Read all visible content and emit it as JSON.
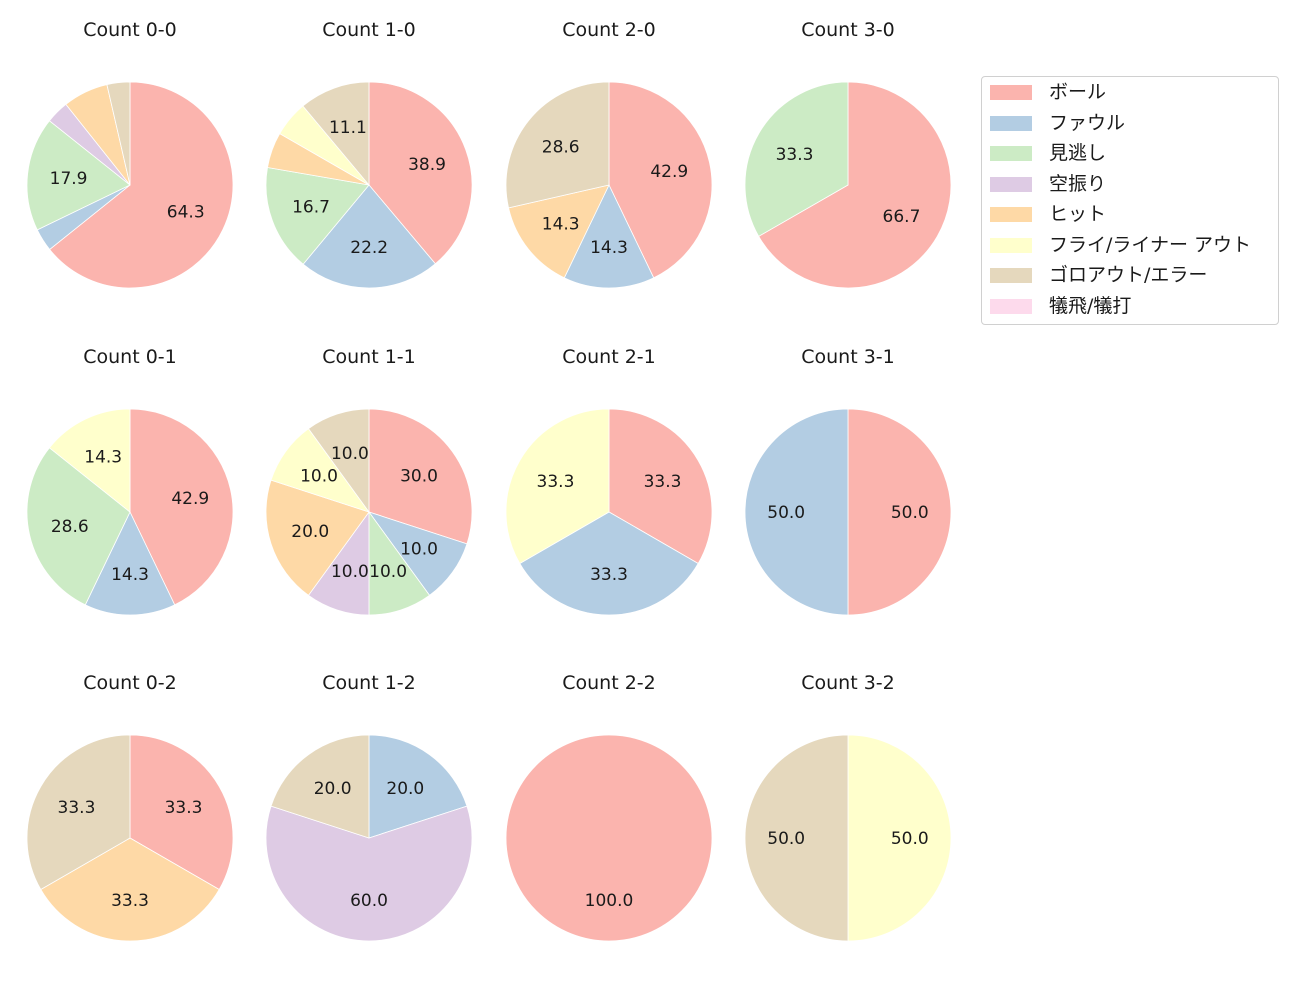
{
  "chart_data": {
    "type": "pie",
    "layout": {
      "rows": 3,
      "cols": 4,
      "legend_position": "upper right",
      "start_angle_deg": 90,
      "direction": "clockwise",
      "label_min_pct": 10
    },
    "categories": [
      "ボール",
      "ファウル",
      "見逃し",
      "空振り",
      "ヒット",
      "フライ/ライナー アウト",
      "ゴロアウト/エラー",
      "犠飛/犠打"
    ],
    "colors": [
      "#fbb4ae",
      "#b3cde3",
      "#ccebc5",
      "#decbe4",
      "#fed9a6",
      "#ffffcc",
      "#e5d8bd",
      "#fddaec"
    ],
    "charts": [
      {
        "title": "Count 0-0",
        "values": [
          64.3,
          3.6,
          17.9,
          3.6,
          7.1,
          0,
          3.6,
          0
        ]
      },
      {
        "title": "Count 1-0",
        "values": [
          38.9,
          22.2,
          16.7,
          0,
          5.6,
          5.6,
          11.1,
          0
        ]
      },
      {
        "title": "Count 2-0",
        "values": [
          42.9,
          14.3,
          0,
          0,
          14.3,
          0,
          28.6,
          0
        ]
      },
      {
        "title": "Count 3-0",
        "values": [
          66.7,
          0,
          33.3,
          0,
          0,
          0,
          0,
          0
        ]
      },
      {
        "title": "Count 0-1",
        "values": [
          42.9,
          14.3,
          28.6,
          0,
          0,
          14.3,
          0,
          0
        ]
      },
      {
        "title": "Count 1-1",
        "values": [
          30.0,
          10.0,
          10.0,
          10.0,
          20.0,
          10.0,
          10.0,
          0
        ]
      },
      {
        "title": "Count 2-1",
        "values": [
          33.3,
          33.3,
          0,
          0,
          0,
          33.3,
          0,
          0
        ]
      },
      {
        "title": "Count 3-1",
        "values": [
          50.0,
          50.0,
          0,
          0,
          0,
          0,
          0,
          0
        ]
      },
      {
        "title": "Count 0-2",
        "values": [
          33.3,
          0,
          0,
          0,
          33.3,
          0,
          33.3,
          0
        ]
      },
      {
        "title": "Count 1-2",
        "values": [
          0,
          20.0,
          0,
          60.0,
          0,
          0,
          20.0,
          0
        ]
      },
      {
        "title": "Count 2-2",
        "values": [
          100.0,
          0,
          0,
          0,
          0,
          0,
          0,
          0
        ]
      },
      {
        "title": "Count 3-2",
        "values": [
          0,
          0,
          0,
          0,
          0,
          50.0,
          50.0,
          0
        ]
      }
    ]
  },
  "legend": {
    "items": [
      {
        "label": "ボール",
        "color": "#fbb4ae"
      },
      {
        "label": "ファウル",
        "color": "#b3cde3"
      },
      {
        "label": "見逃し",
        "color": "#ccebc5"
      },
      {
        "label": "空振り",
        "color": "#decbe4"
      },
      {
        "label": "ヒット",
        "color": "#fed9a6"
      },
      {
        "label": "フライ/ライナー アウト",
        "color": "#ffffcc"
      },
      {
        "label": "ゴロアウト/エラー",
        "color": "#e5d8bd"
      },
      {
        "label": "犠飛/犠打",
        "color": "#fddaec"
      }
    ]
  }
}
